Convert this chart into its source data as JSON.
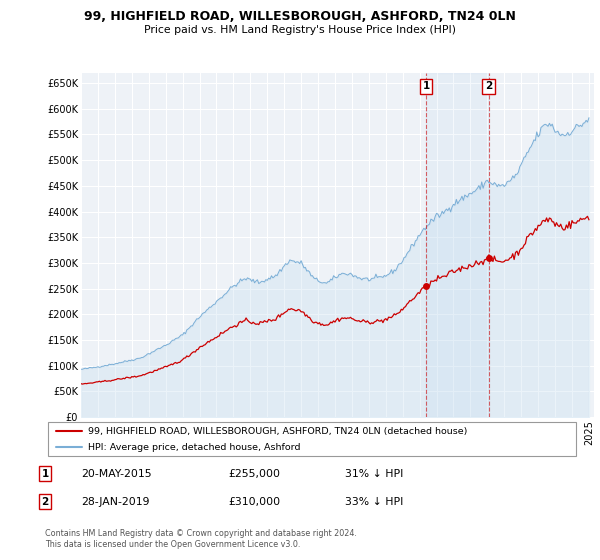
{
  "title": "99, HIGHFIELD ROAD, WILLESBOROUGH, ASHFORD, TN24 0LN",
  "subtitle": "Price paid vs. HM Land Registry's House Price Index (HPI)",
  "xlim_start": 1995.0,
  "xlim_end": 2025.3,
  "ylim_bottom": 0,
  "ylim_top": 670000,
  "yticks": [
    0,
    50000,
    100000,
    150000,
    200000,
    250000,
    300000,
    350000,
    400000,
    450000,
    500000,
    550000,
    600000,
    650000
  ],
  "ytick_labels": [
    "£0",
    "£50K",
    "£100K",
    "£150K",
    "£200K",
    "£250K",
    "£300K",
    "£350K",
    "£400K",
    "£450K",
    "£500K",
    "£550K",
    "£600K",
    "£650K"
  ],
  "sale1_x": 2015.38,
  "sale1_y": 255000,
  "sale2_x": 2019.08,
  "sale2_y": 310000,
  "property_color": "#cc0000",
  "hpi_color": "#7aaed6",
  "hpi_fill_color": "#ddeeff",
  "background_color": "#eef2f7",
  "legend_line1": "99, HIGHFIELD ROAD, WILLESBOROUGH, ASHFORD, TN24 0LN (detached house)",
  "legend_line2": "HPI: Average price, detached house, Ashford",
  "annotation1_date": "20-MAY-2015",
  "annotation1_price": "£255,000",
  "annotation1_hpi": "31% ↓ HPI",
  "annotation2_date": "28-JAN-2019",
  "annotation2_price": "£310,000",
  "annotation2_hpi": "33% ↓ HPI",
  "footer": "Contains HM Land Registry data © Crown copyright and database right 2024.\nThis data is licensed under the Open Government Licence v3.0."
}
